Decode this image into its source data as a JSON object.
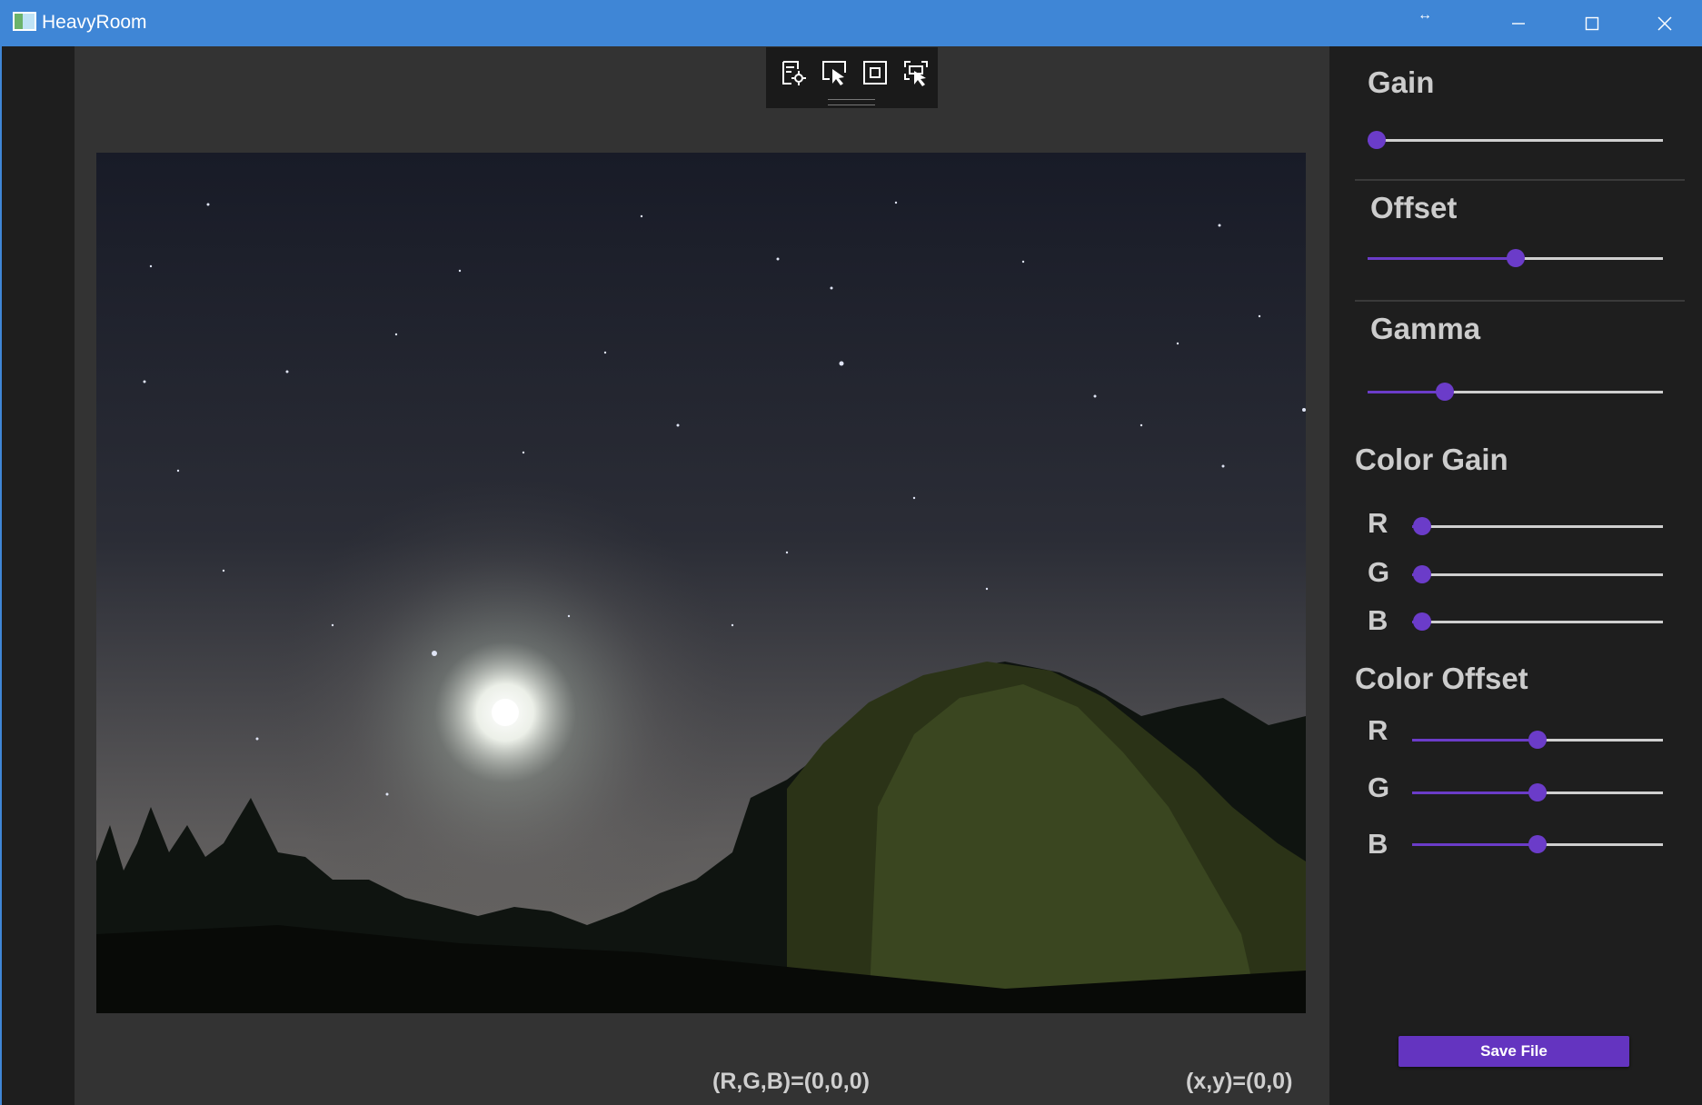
{
  "window": {
    "title": "HeavyRoom",
    "resize_hint": "↔"
  },
  "toolbar": {
    "icons": [
      "settings-doc-icon",
      "select-arrow-icon",
      "fit-frame-icon",
      "region-select-icon"
    ]
  },
  "status": {
    "rgb": "(R,G,B)=(0,0,0)",
    "xy": "(x,y)=(0,0)"
  },
  "panel": {
    "gain": {
      "title": "Gain",
      "value": 0.03
    },
    "offset": {
      "title": "Offset",
      "value": 0.5
    },
    "gamma": {
      "title": "Gamma",
      "value": 0.26
    },
    "color_gain": {
      "title": "Color Gain",
      "r_label": "R",
      "g_label": "G",
      "b_label": "B",
      "r": 0.04,
      "g": 0.04,
      "b": 0.04
    },
    "color_offset": {
      "title": "Color Offset",
      "r_label": "R",
      "g_label": "G",
      "b_label": "B",
      "r": 0.5,
      "g": 0.5,
      "b": 0.5
    },
    "save_label": "Save File"
  },
  "colors": {
    "accent": "#6b3cc9",
    "titlebar": "#3f86d6",
    "panel": "#1e1e1e",
    "canvas": "#333333"
  }
}
